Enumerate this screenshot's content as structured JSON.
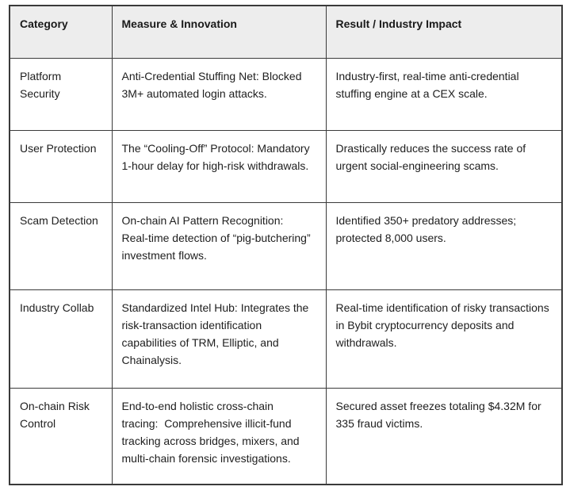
{
  "colors": {
    "header_bg": "#ededed",
    "border": "#3a3a3a",
    "text": "#202020",
    "page_bg": "#ffffff"
  },
  "table": {
    "columns": [
      "Category",
      "Measure & Innovation",
      "Result / Industry Impact"
    ],
    "rows": [
      {
        "category": "Platform Security",
        "measure": "Anti-Credential Stuffing Net: Blocked 3M+ automated login attacks.",
        "result": "Industry-first, real-time anti-credential stuffing engine at a CEX scale."
      },
      {
        "category": "User Protection",
        "measure": "The “Cooling-Off” Protocol: Mandatory 1-hour delay for high-risk withdrawals.",
        "result": "Drastically reduces the success rate of urgent social-engineering scams."
      },
      {
        "category": "Scam Detection",
        "measure": "On-chain AI Pattern Recognition: Real-time detection of “pig-butchering” investment flows.",
        "result": "Identified 350+ predatory addresses; protected 8,000 users."
      },
      {
        "category": "Industry Collab",
        "measure": "Standardized Intel Hub: Integrates the risk-transaction identification capabilities of TRM, Elliptic, and Chainalysis.",
        "result": "Real-time identification of risky transactions in Bybit cryptocurrency deposits and withdrawals."
      },
      {
        "category": "On-chain Risk Control",
        "measure": "End-to-end holistic cross-chain tracing:  Comprehensive illicit-fund tracking across bridges, mixers, and multi-chain forensic investigations.",
        "result": "Secured asset freezes totaling $4.32M for 335 fraud victims."
      }
    ]
  }
}
